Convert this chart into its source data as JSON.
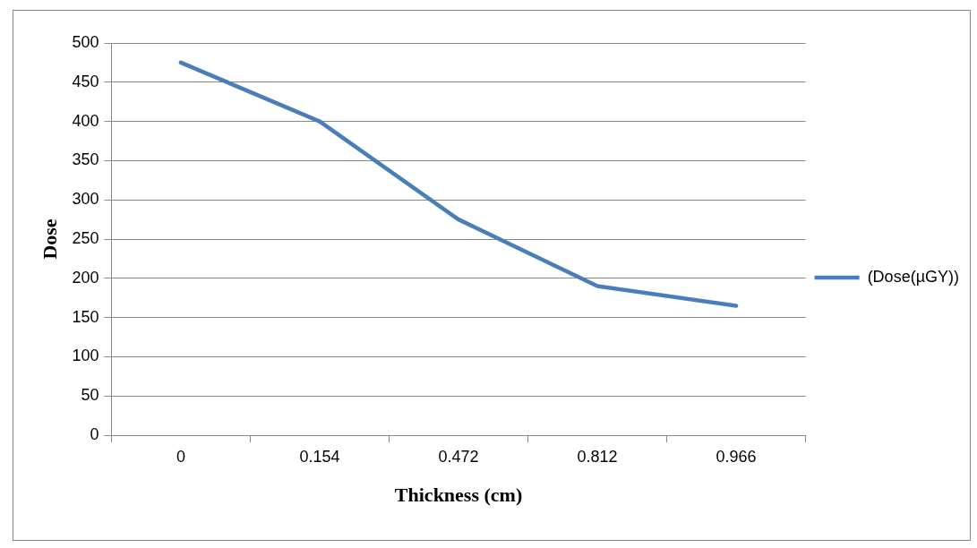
{
  "chart_data": {
    "type": "line",
    "xlabel": "Thickness (cm)",
    "ylabel": "Dose",
    "categories": [
      "0",
      "0.154",
      "0.472",
      "0.812",
      "0.966"
    ],
    "series": [
      {
        "name": "(Dose(µGY))",
        "color": "#4a7ebb",
        "values": [
          475,
          400,
          275,
          190,
          165
        ]
      }
    ],
    "ylim": [
      0,
      500
    ],
    "yticks": [
      0,
      50,
      100,
      150,
      200,
      250,
      300,
      350,
      400,
      450,
      500
    ],
    "grid": "y",
    "legend": "right",
    "marker": "none",
    "line_style": "solid"
  }
}
